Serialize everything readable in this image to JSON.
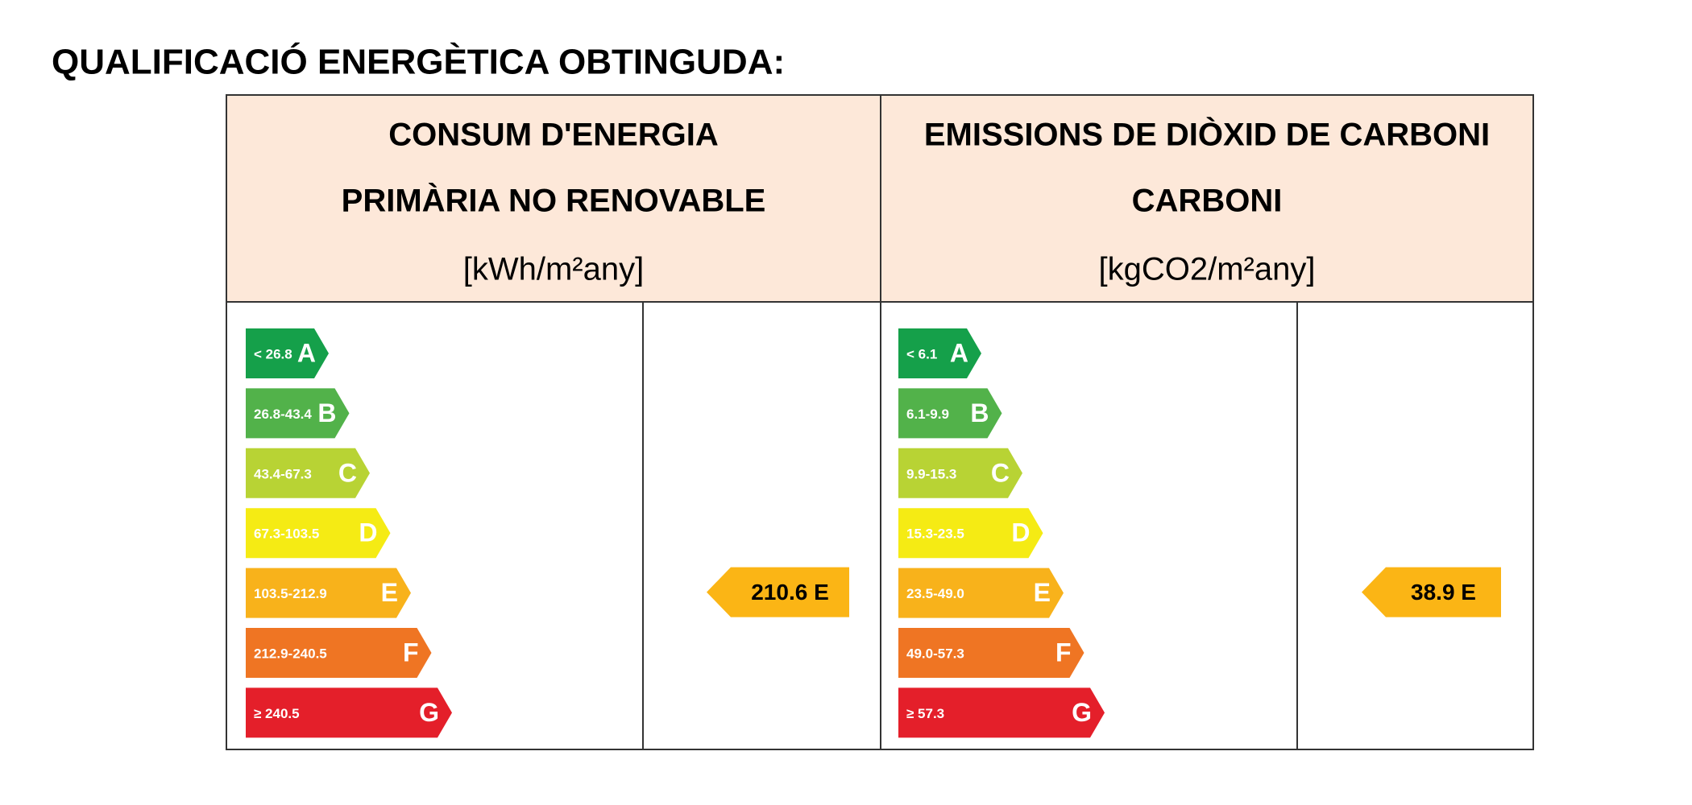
{
  "title": "QUALIFICACIÓ ENERGÈTICA OBTINGUDA:",
  "class_colors": [
    "#15a04a",
    "#52b24a",
    "#b8d334",
    "#f5eb14",
    "#f8b21b",
    "#ef7523",
    "#e41f2a"
  ],
  "rating_color": "#fbb515",
  "panels": [
    {
      "header": [
        "CONSUM D'ENERGIA",
        "PRIMÀRIA NO RENOVABLE"
      ],
      "unit": "[kWh/m²any]",
      "classes": [
        {
          "range": "< 26.8",
          "letter": "A"
        },
        {
          "range": "26.8-43.4",
          "letter": "B"
        },
        {
          "range": "43.4-67.3",
          "letter": "C"
        },
        {
          "range": "67.3-103.5",
          "letter": "D"
        },
        {
          "range": "103.5-212.9",
          "letter": "E"
        },
        {
          "range": "212.9-240.5",
          "letter": "F"
        },
        {
          "range": "≥ 240.5",
          "letter": "G"
        }
      ],
      "rating": "210.6 E"
    },
    {
      "header": [
        "EMISSIONS DE DIÒXID DE CARBONI",
        "CARBONI"
      ],
      "unit": "[kgCO2/m²any]",
      "classes": [
        {
          "range": "< 6.1",
          "letter": "A"
        },
        {
          "range": "6.1-9.9",
          "letter": "B"
        },
        {
          "range": "9.9-15.3",
          "letter": "C"
        },
        {
          "range": "15.3-23.5",
          "letter": "D"
        },
        {
          "range": "23.5-49.0",
          "letter": "E"
        },
        {
          "range": "49.0-57.3",
          "letter": "F"
        },
        {
          "range": "≥ 57.3",
          "letter": "G"
        }
      ],
      "rating": "38.9 E"
    }
  ]
}
